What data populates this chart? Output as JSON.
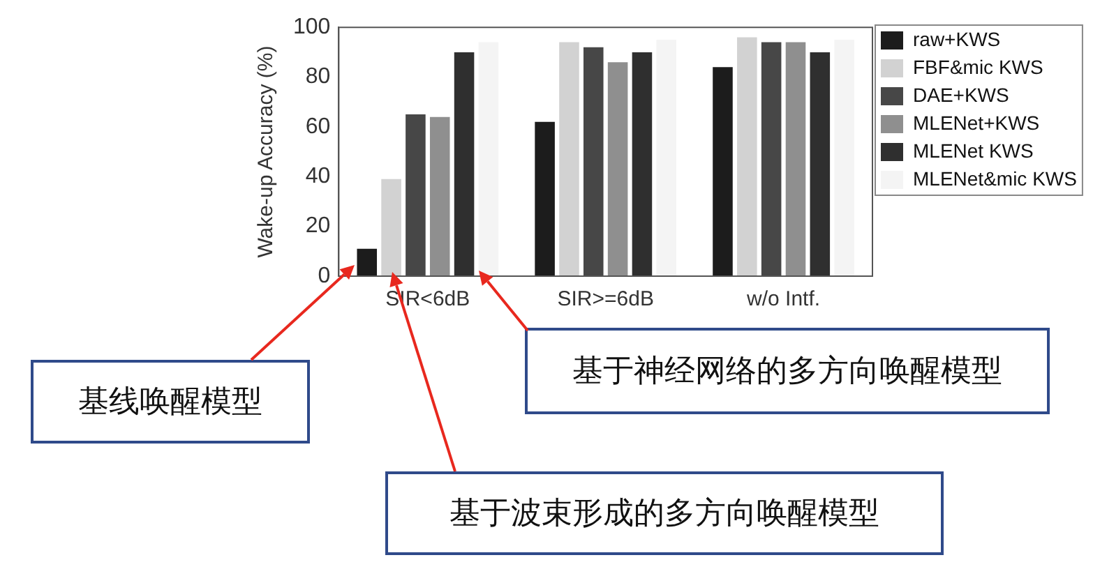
{
  "chart_data": {
    "type": "bar",
    "categories": [
      "SIR<6dB",
      "SIR>=6dB",
      "w/o Intf."
    ],
    "ylabel": "Wake-up Accuracy (%)",
    "ylim": [
      0,
      100
    ],
    "yticks": [
      0,
      20,
      40,
      60,
      80,
      100
    ],
    "grid": false,
    "legend": "right",
    "series": [
      {
        "name": "raw+KWS",
        "color": "#1c1c1c",
        "values": [
          11,
          62,
          84
        ]
      },
      {
        "name": "FBF&mic KWS",
        "color": "#d2d2d2",
        "values": [
          39,
          94,
          96
        ]
      },
      {
        "name": "DAE+KWS",
        "color": "#474747",
        "values": [
          65,
          92,
          94
        ]
      },
      {
        "name": "MLENet+KWS",
        "color": "#8f8f8f",
        "values": [
          64,
          86,
          94
        ]
      },
      {
        "name": "MLENet KWS",
        "color": "#2f2f2f",
        "values": [
          90,
          90,
          90
        ]
      },
      {
        "name": "MLENet&mic KWS",
        "color": "#f4f4f4",
        "values": [
          94,
          95,
          95
        ]
      }
    ],
    "annotations": [
      "基线唤醒模型",
      "基于神经网络的多方向唤醒模型",
      "基于波束形成的多方向唤醒模型"
    ]
  }
}
